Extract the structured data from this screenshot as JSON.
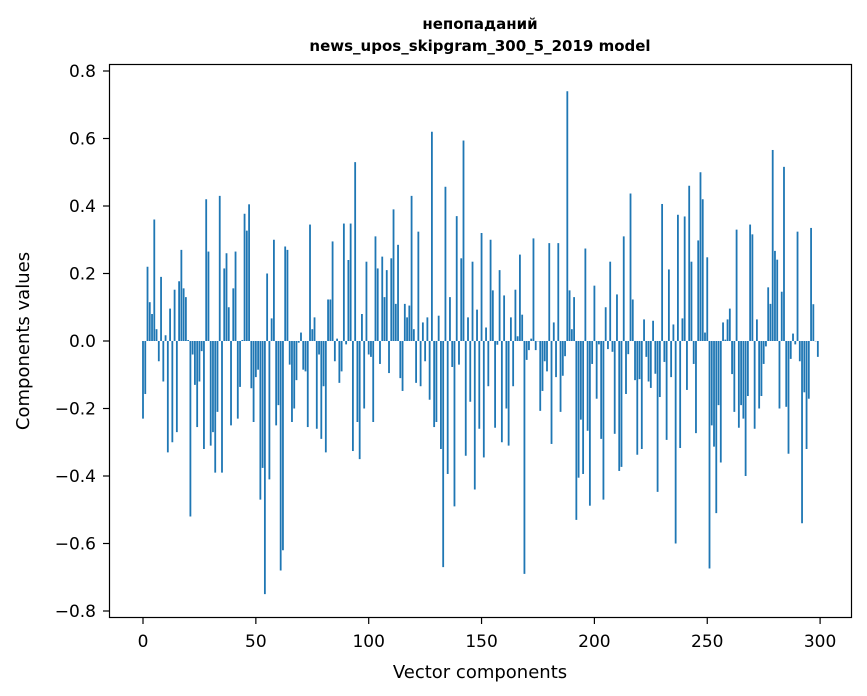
{
  "chart_data": {
    "type": "bar",
    "title_lines": [
      "непопаданий",
      "news_upos_skipgram_300_5_2019 model"
    ],
    "xlabel": "Vector components",
    "ylabel": "Components values",
    "xlim": [
      -15,
      315
    ],
    "ylim": [
      -0.83,
      0.82
    ],
    "xticks": [
      0,
      50,
      100,
      150,
      200,
      250,
      300
    ],
    "xtick_labels": [
      "0",
      "50",
      "100",
      "150",
      "200",
      "250",
      "300"
    ],
    "yticks": [
      -0.8,
      -0.6,
      -0.4,
      -0.2,
      0.0,
      0.2,
      0.4,
      0.6,
      0.8
    ],
    "ytick_labels": [
      "−0.8",
      "−0.6",
      "−0.4",
      "−0.2",
      "0.0",
      "0.2",
      "0.4",
      "0.6",
      "0.8"
    ],
    "grid": false,
    "bar_color": "#1f77b4",
    "values": [
      -0.23,
      -0.157,
      0.22,
      0.115,
      0.08,
      0.36,
      0.035,
      -0.06,
      0.19,
      -0.12,
      0.017,
      -0.33,
      0.096,
      -0.3,
      0.152,
      -0.27,
      0.177,
      0.27,
      0.156,
      0.13,
      0.003,
      -0.52,
      -0.04,
      -0.13,
      -0.255,
      -0.12,
      -0.03,
      -0.32,
      0.42,
      0.265,
      -0.31,
      -0.27,
      -0.39,
      -0.21,
      0.43,
      -0.39,
      0.215,
      0.26,
      0.1,
      -0.25,
      0.156,
      0.265,
      -0.23,
      -0.136,
      0.003,
      0.377,
      0.327,
      0.405,
      -0.14,
      -0.24,
      -0.107,
      -0.085,
      -0.47,
      -0.376,
      -0.75,
      0.2,
      -0.41,
      0.067,
      0.3,
      -0.25,
      -0.19,
      -0.68,
      -0.62,
      0.28,
      0.27,
      -0.07,
      -0.24,
      -0.2,
      -0.116,
      -0.005,
      0.025,
      -0.085,
      -0.09,
      -0.255,
      0.345,
      0.035,
      0.07,
      -0.26,
      -0.04,
      -0.29,
      -0.134,
      -0.33,
      0.123,
      0.123,
      0.295,
      -0.06,
      0.007,
      -0.124,
      -0.09,
      0.348,
      -0.01,
      0.24,
      0.348,
      -0.326,
      0.53,
      -0.24,
      -0.35,
      0.08,
      -0.2,
      0.235,
      -0.04,
      -0.047,
      -0.24,
      0.31,
      0.215,
      -0.068,
      0.25,
      0.13,
      0.21,
      -0.095,
      0.245,
      0.39,
      0.11,
      0.285,
      -0.11,
      -0.148,
      0.11,
      0.07,
      0.105,
      0.43,
      0.035,
      -0.124,
      0.324,
      -0.134,
      0.055,
      -0.06,
      0.07,
      -0.174,
      0.62,
      -0.255,
      -0.24,
      0.075,
      -0.32,
      -0.67,
      0.457,
      -0.394,
      0.13,
      -0.077,
      -0.49,
      0.37,
      -0.07,
      0.245,
      0.594,
      -0.34,
      0.07,
      -0.18,
      0.235,
      -0.44,
      0.093,
      -0.26,
      0.32,
      -0.345,
      0.04,
      -0.134,
      0.3,
      0.15,
      -0.257,
      -0.011,
      0.21,
      -0.3,
      0.135,
      -0.2,
      -0.31,
      0.07,
      -0.134,
      0.152,
      0.014,
      0.256,
      0.078,
      -0.69,
      -0.056,
      -0.027,
      0.007,
      0.304,
      -0.027,
      0.0,
      -0.207,
      -0.148,
      -0.06,
      -0.09,
      0.29,
      -0.305,
      0.055,
      -0.107,
      0.29,
      -0.21,
      -0.103,
      -0.045,
      0.74,
      0.15,
      0.035,
      0.13,
      -0.53,
      -0.405,
      -0.233,
      -0.394,
      0.274,
      -0.266,
      -0.488,
      -0.068,
      0.164,
      -0.171,
      -0.01,
      -0.29,
      -0.47,
      0.1,
      -0.024,
      0.235,
      -0.032,
      -0.275,
      0.138,
      -0.385,
      -0.373,
      0.31,
      -0.157,
      -0.039,
      0.437,
      0.123,
      -0.116,
      -0.337,
      -0.113,
      -0.32,
      0.064,
      -0.047,
      -0.12,
      -0.139,
      0.06,
      -0.097,
      -0.447,
      -0.166,
      0.406,
      -0.062,
      -0.293,
      0.212,
      -0.107,
      0.049,
      -0.6,
      0.374,
      -0.317,
      0.067,
      0.369,
      -0.145,
      0.46,
      0.235,
      -0.068,
      -0.273,
      0.298,
      0.5,
      0.42,
      0.025,
      0.248,
      -0.674,
      -0.25,
      -0.313,
      -0.51,
      -0.19,
      -0.36,
      0.055,
      0.004,
      0.064,
      0.096,
      -0.098,
      -0.21,
      0.33,
      -0.257,
      -0.19,
      -0.23,
      -0.4,
      -0.163,
      0.345,
      0.316,
      -0.26,
      0.064,
      -0.2,
      -0.163,
      -0.068,
      -0.016,
      0.159,
      0.11,
      0.566,
      0.267,
      0.241,
      -0.2,
      0.146,
      0.516,
      -0.195,
      -0.334,
      -0.053,
      0.022,
      -0.01,
      0.324,
      -0.06,
      -0.54,
      -0.152,
      -0.32,
      -0.171,
      0.335,
      0.109,
      0.0,
      -0.047
    ]
  }
}
